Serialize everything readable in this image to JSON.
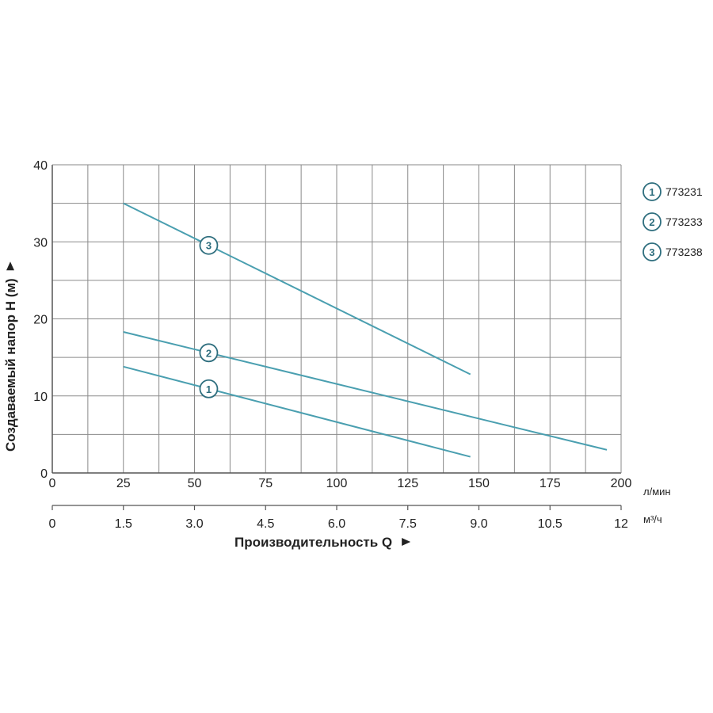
{
  "chart_data": {
    "type": "line",
    "xlabel": "Производительность Q",
    "ylabel": "Создаваемый напор H (м)",
    "x_unit": "л/мин",
    "x2_unit": "м³/ч",
    "xlim": [
      0,
      200
    ],
    "ylim": [
      0,
      40
    ],
    "grid": true,
    "x_ticks": [
      "0",
      "25",
      "50",
      "75",
      "100",
      "125",
      "150",
      "175",
      "200"
    ],
    "x_tick_values": [
      0,
      25,
      50,
      75,
      100,
      125,
      150,
      175,
      200
    ],
    "x2_ticks": [
      "0",
      "1.5",
      "3.0",
      "4.5",
      "6.0",
      "7.5",
      "9.0",
      "10.5",
      "12"
    ],
    "x2_tick_values": [
      0,
      25,
      50,
      75,
      100,
      125,
      150,
      175,
      200
    ],
    "y_ticks": [
      "0",
      "10",
      "20",
      "30",
      "40"
    ],
    "y_tick_values": [
      0,
      10,
      20,
      30,
      40
    ],
    "legend_position": "right",
    "series": [
      {
        "name": "773231",
        "marker": "1",
        "x": [
          25,
          147
        ],
        "y": [
          13.8,
          2.1
        ],
        "label_at": 55
      },
      {
        "name": "773233",
        "marker": "2",
        "x": [
          25,
          195
        ],
        "y": [
          18.3,
          3.0
        ],
        "label_at": 55
      },
      {
        "name": "773238",
        "marker": "3",
        "x": [
          25,
          147
        ],
        "y": [
          35.0,
          12.8
        ],
        "label_at": 55
      }
    ],
    "colors": {
      "line": "#4a9fb0",
      "marker": "#2e6e7e",
      "grid": "#8a8a8a",
      "axis": "#555555"
    }
  }
}
